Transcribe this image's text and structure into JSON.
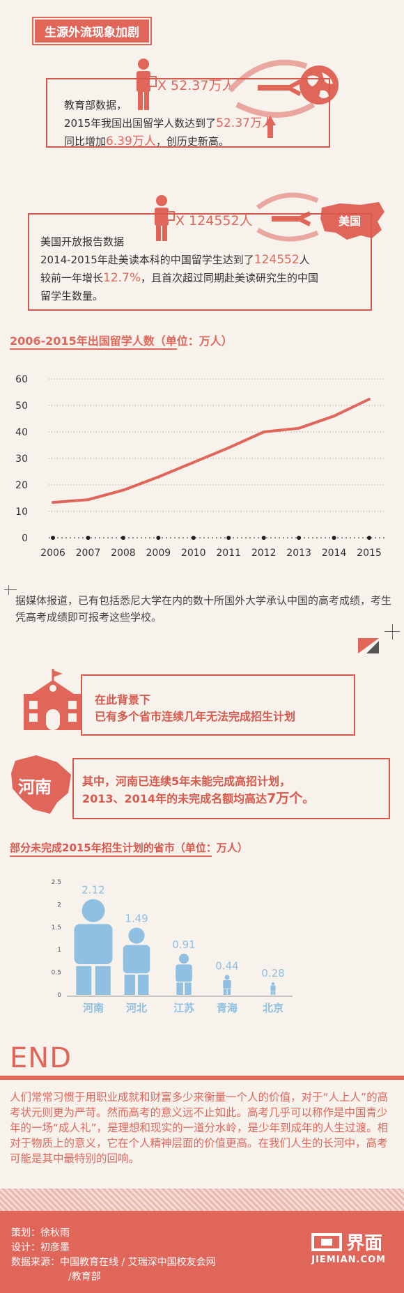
{
  "header": {
    "tag": "生源外流现象加剧"
  },
  "block1": {
    "multiplier": "X 52.37万人",
    "line1": "教育部数据，",
    "line2_pre": "2015年我国出国留学人数达到了",
    "line2_hl": "52.37万人",
    "line3_pre": "同比增加",
    "line3_hl": "6.39万人",
    "line3_post": "，创历史新高。"
  },
  "block2": {
    "multiplier": "X 124552人",
    "country": "美国",
    "line1": "美国开放报告数据",
    "line2_pre": "2014-2015年赴美读本科的中国留学生达到了",
    "line2_hl": "124552",
    "line2_post": "人",
    "line3_pre": "较前一年增长",
    "line3_hl": "12.7%",
    "line3_post": "，且首次超过同期赴美读研究生的中国",
    "line4": "留学生数量。"
  },
  "chart_title": "2006-2015年出国留学人数（单位：万人）",
  "chart_data": [
    {
      "type": "line",
      "title": "2006-2015年出国留学人数（单位：万人）",
      "x": [
        "2006",
        "2007",
        "2008",
        "2009",
        "2010",
        "2011",
        "2012",
        "2013",
        "2014",
        "2015"
      ],
      "y": [
        13.4,
        14.4,
        18,
        23,
        28.5,
        34,
        40,
        41.4,
        46,
        52.37
      ],
      "yticks": [
        "0",
        "10",
        "20",
        "30",
        "40",
        "50",
        "60"
      ],
      "ylim": [
        0,
        60
      ],
      "grid": true,
      "color": "#e0665a"
    },
    {
      "type": "bar",
      "title": "部分未完成2015年招生计划的省市（单位：万人）",
      "categories": [
        "河南",
        "河北",
        "江苏",
        "青海",
        "北京"
      ],
      "values": [
        2.12,
        1.49,
        0.91,
        0.44,
        0.28
      ],
      "labels": [
        "2.12",
        "1.49",
        "0.91",
        "0.44",
        "0.28"
      ],
      "yticks": [
        "0",
        "0.5",
        "1",
        "1.5",
        "2",
        "2.5"
      ],
      "ylim": [
        0,
        2.5
      ],
      "color": "#8fc0e2"
    }
  ],
  "news": "据媒体报道，已有包括悉尼大学在内的数十所国外大学承认中国的高考成绩，考生凭高考成绩即可报考这些学校。",
  "background": {
    "line1": "在此背景下",
    "line2": "已有多个省市连续几年无法完成招生计划"
  },
  "henan": {
    "label": "河南",
    "line1": "其中，河南已连续5年未能完成高招计划，",
    "line2_pre": "2013、2014年的未完成名额均高达",
    "line2_hl": "7万个",
    "line2_post": "。"
  },
  "bar_title": "部分未完成2015年招生计划的省市（单位：万人）",
  "end": "END",
  "closing": "人们常常习惯于用职业成就和财富多少来衡量一个人的价值，对于“人上人”的高考状元则更为严苛。然而高考的意义远不止如此。高考几乎可以称作是中国青少年的一场“成人礼”，是理想和现实的一道分水岭，是少年到成年的人生过渡。相对于物质上的意义，它在个人精神层面的价值更高。在我们人生的长河中，高考可能是其中最特别的回响。",
  "footer": {
    "planner": "策划：徐秋雨",
    "designer": "设计：初彦墨",
    "source": "数据来源：中国教育在线 / 艾瑞深中国校友会网",
    "source2": "/教育部",
    "logo_cn": "界面",
    "logo_en": "JIEMIAN.COM"
  },
  "colors": {
    "accent": "#e0665a",
    "blue": "#8fc0e2",
    "bg": "#f7f2ec"
  }
}
